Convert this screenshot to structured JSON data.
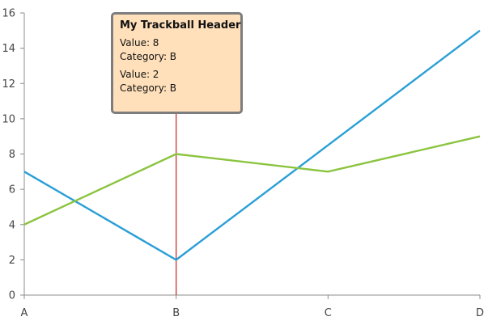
{
  "chart_data": {
    "type": "line",
    "categories": [
      "A",
      "B",
      "C",
      "D"
    ],
    "series": [
      {
        "color": "#2a9fd6",
        "values": [
          7,
          2,
          8.5,
          15
        ]
      },
      {
        "color": "#8bc43f",
        "values": [
          4,
          8,
          7,
          9
        ]
      }
    ],
    "ylim": [
      0,
      16
    ],
    "yticks": [
      0,
      2,
      4,
      6,
      8,
      10,
      12,
      14,
      16
    ],
    "grid": false,
    "axis_color": "#8c8c8c",
    "trackball": {
      "category": "B",
      "line_color": "#c8201e",
      "header": "My Trackball Header",
      "entries": [
        {
          "value_text": "Value: 8",
          "category_text": "Category: B"
        },
        {
          "value_text": "Value: 2",
          "category_text": "Category: B"
        }
      ]
    }
  }
}
